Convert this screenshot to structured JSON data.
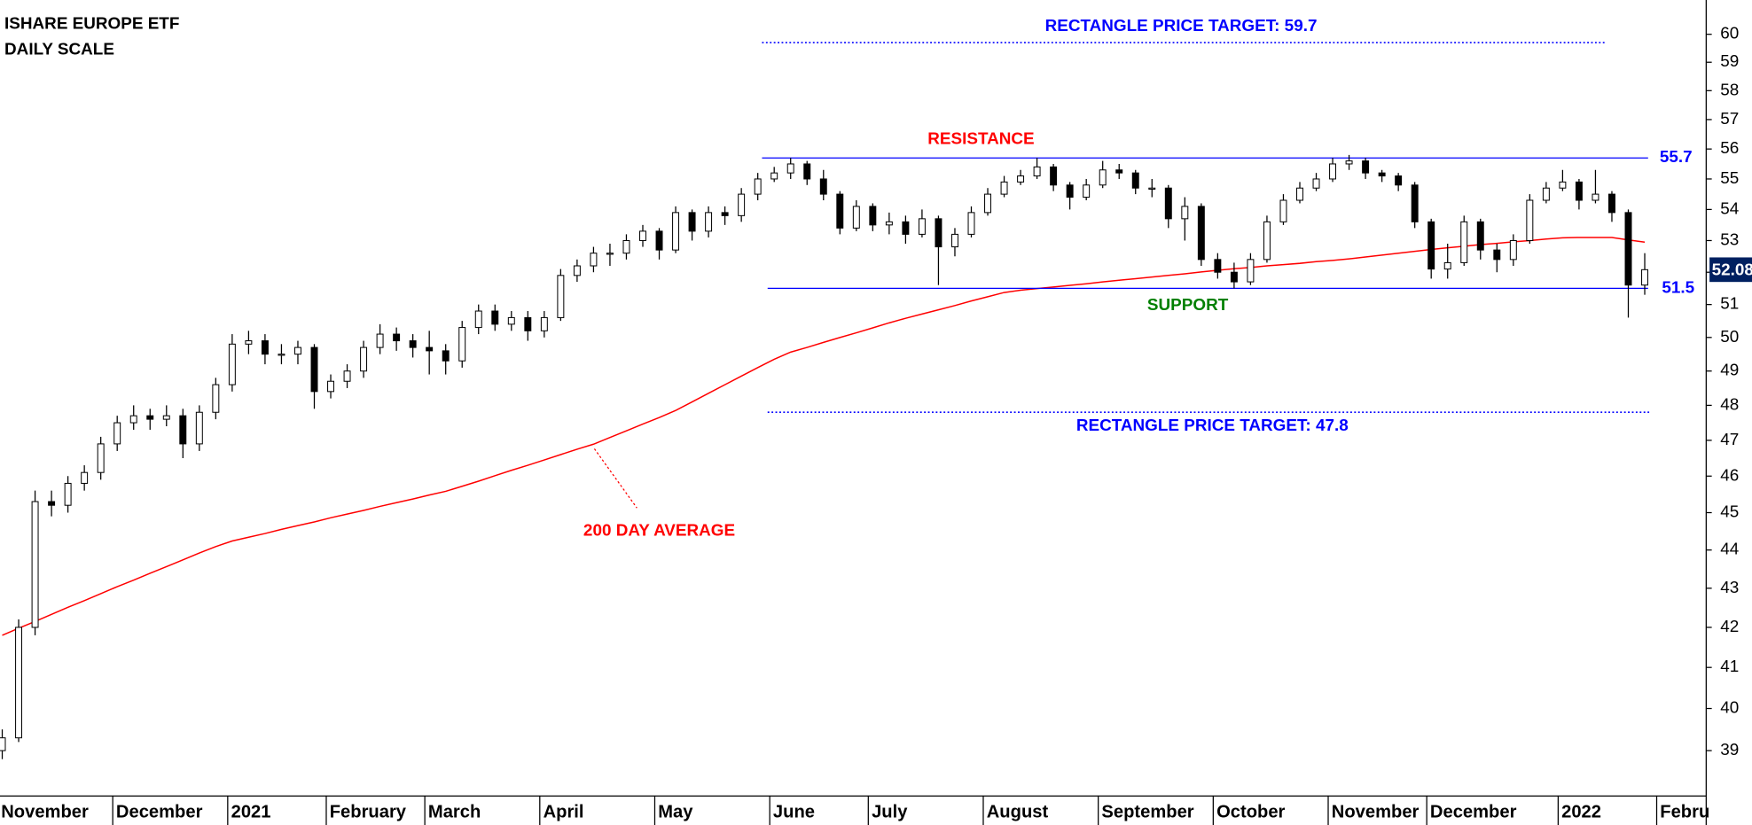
{
  "chart_data": {
    "type": "candlestick",
    "title": "ISHARE EUROPE ETF",
    "subtitle": "DAILY SCALE",
    "log_scale": true,
    "ylim": [
      37.95,
      61.25
    ],
    "yticks": [
      39,
      40,
      41,
      42,
      43,
      44,
      45,
      46,
      47,
      48,
      49,
      50,
      51,
      52,
      53,
      54,
      55,
      56,
      57,
      58,
      59,
      60
    ],
    "up_color": "#ffffff",
    "down_color": "#000000",
    "categories": [
      "November",
      null,
      null,
      null,
      null,
      null,
      null,
      "December",
      null,
      null,
      null,
      null,
      null,
      null,
      "2021",
      null,
      null,
      null,
      null,
      null,
      "February",
      null,
      null,
      null,
      null,
      null,
      "March",
      null,
      null,
      null,
      null,
      null,
      null,
      "April",
      null,
      null,
      null,
      null,
      null,
      null,
      "May",
      null,
      null,
      null,
      null,
      null,
      null,
      "June",
      null,
      null,
      null,
      null,
      null,
      "July",
      null,
      null,
      null,
      null,
      null,
      null,
      "August",
      null,
      null,
      null,
      null,
      null,
      null,
      "September",
      null,
      null,
      null,
      null,
      null,
      null,
      "October",
      null,
      null,
      null,
      null,
      null,
      null,
      "November",
      null,
      null,
      null,
      null,
      null,
      "December",
      null,
      null,
      null,
      null,
      null,
      null,
      null,
      "2022",
      null,
      null,
      null,
      null,
      null,
      "Febru"
    ],
    "open": [
      39.0,
      39.3,
      42.0,
      45.3,
      45.2,
      45.8,
      46.1,
      46.9,
      47.5,
      47.7,
      47.6,
      47.7,
      46.9,
      47.8,
      48.6,
      49.8,
      49.9,
      49.5,
      49.5,
      49.7,
      48.4,
      48.7,
      49.0,
      49.7,
      50.1,
      49.9,
      49.7,
      49.6,
      49.3,
      50.3,
      50.8,
      50.4,
      50.6,
      50.2,
      50.6,
      51.9,
      52.2,
      52.6,
      52.6,
      53.0,
      53.3,
      52.7,
      53.9,
      53.3,
      53.9,
      53.8,
      54.5,
      55.0,
      55.2,
      55.5,
      55.0,
      54.5,
      53.4,
      54.1,
      53.5,
      53.6,
      53.2,
      53.7,
      52.8,
      53.2,
      53.9,
      54.5,
      54.9,
      55.1,
      55.4,
      54.8,
      54.4,
      54.8,
      55.3,
      55.2,
      54.7,
      54.7,
      53.7,
      54.1,
      52.4,
      52.0,
      51.7,
      52.4,
      53.6,
      54.3,
      54.7,
      55.0,
      55.5,
      55.6,
      55.2,
      55.1,
      54.8,
      53.6,
      52.1,
      52.3,
      53.6,
      52.7,
      52.4,
      53.0,
      54.3,
      54.7,
      54.9,
      54.3,
      54.5,
      53.9,
      51.6,
      null
    ],
    "high": [
      39.5,
      42.2,
      45.6,
      45.6,
      46.0,
      46.3,
      47.1,
      47.7,
      48.0,
      47.9,
      48.0,
      47.9,
      48.0,
      48.8,
      50.1,
      50.2,
      50.1,
      49.8,
      49.9,
      49.8,
      48.9,
      49.2,
      49.9,
      50.4,
      50.3,
      50.1,
      50.2,
      49.8,
      50.5,
      51.0,
      51.0,
      50.8,
      50.8,
      50.8,
      52.1,
      52.4,
      52.8,
      52.9,
      53.2,
      53.5,
      53.4,
      54.1,
      54.0,
      54.1,
      54.1,
      54.7,
      55.2,
      55.4,
      55.7,
      55.6,
      55.3,
      54.6,
      54.3,
      54.2,
      53.9,
      53.8,
      54.0,
      53.8,
      53.4,
      54.1,
      54.7,
      55.1,
      55.3,
      55.7,
      55.5,
      54.9,
      55.0,
      55.6,
      55.5,
      55.3,
      55.0,
      54.8,
      54.4,
      54.2,
      52.6,
      52.3,
      52.6,
      53.8,
      54.5,
      54.9,
      55.2,
      55.7,
      55.8,
      55.7,
      55.3,
      55.2,
      54.9,
      53.7,
      52.9,
      53.8,
      53.7,
      52.9,
      53.2,
      54.5,
      54.9,
      55.3,
      55.0,
      55.3,
      54.6,
      54.0,
      52.6,
      null
    ],
    "low": [
      38.8,
      39.2,
      41.8,
      44.9,
      45.0,
      45.6,
      45.9,
      46.7,
      47.3,
      47.3,
      47.4,
      46.5,
      46.7,
      47.6,
      48.4,
      49.5,
      49.2,
      49.2,
      49.2,
      47.9,
      48.2,
      48.5,
      48.8,
      49.5,
      49.6,
      49.4,
      48.9,
      48.9,
      49.1,
      50.1,
      50.2,
      50.2,
      49.9,
      50.0,
      50.5,
      51.7,
      52.0,
      52.2,
      52.4,
      52.8,
      52.4,
      52.6,
      53.0,
      53.1,
      53.5,
      53.6,
      54.3,
      54.9,
      55.0,
      54.8,
      54.3,
      53.2,
      53.3,
      53.3,
      53.2,
      52.9,
      53.1,
      51.6,
      52.5,
      53.1,
      53.8,
      54.4,
      54.8,
      55.0,
      54.6,
      54.0,
      54.3,
      54.7,
      55.0,
      54.5,
      54.4,
      53.4,
      53.0,
      52.2,
      51.8,
      51.5,
      51.6,
      52.3,
      53.5,
      54.2,
      54.6,
      54.9,
      55.3,
      55.0,
      54.9,
      54.6,
      53.4,
      51.8,
      51.8,
      52.2,
      52.4,
      52.0,
      52.2,
      52.9,
      54.2,
      54.6,
      54.0,
      54.2,
      53.6,
      50.6,
      51.3,
      null
    ],
    "close": [
      39.3,
      42.0,
      45.3,
      45.2,
      45.8,
      46.1,
      46.9,
      47.5,
      47.7,
      47.6,
      47.7,
      46.9,
      47.8,
      48.6,
      49.8,
      49.9,
      49.5,
      49.5,
      49.7,
      48.4,
      48.7,
      49.0,
      49.7,
      50.1,
      49.9,
      49.7,
      49.6,
      49.3,
      50.3,
      50.8,
      50.4,
      50.6,
      50.2,
      50.6,
      51.9,
      52.2,
      52.6,
      52.6,
      53.0,
      53.3,
      52.7,
      53.9,
      53.3,
      53.9,
      53.8,
      54.5,
      55.0,
      55.2,
      55.5,
      55.0,
      54.5,
      53.4,
      54.1,
      53.5,
      53.6,
      53.2,
      53.7,
      52.8,
      53.2,
      53.9,
      54.5,
      54.9,
      55.1,
      55.4,
      54.8,
      54.4,
      54.8,
      55.3,
      55.2,
      54.7,
      54.7,
      53.7,
      54.1,
      52.4,
      52.0,
      51.7,
      52.4,
      53.6,
      54.3,
      54.7,
      55.0,
      55.5,
      55.6,
      55.2,
      55.1,
      54.8,
      53.6,
      52.1,
      52.3,
      53.6,
      52.7,
      52.4,
      53.0,
      54.3,
      54.7,
      54.9,
      54.3,
      54.5,
      53.9,
      51.6,
      52.08,
      null
    ],
    "last_price_color": "#002060",
    "moving_average": {
      "name": "200 DAY AVERAGE",
      "color": "#ff0000",
      "values": [
        41.8,
        41.98,
        42.15,
        42.33,
        42.51,
        42.68,
        42.86,
        43.04,
        43.21,
        43.39,
        43.56,
        43.74,
        43.92,
        44.09,
        44.24,
        44.34,
        44.44,
        44.55,
        44.65,
        44.75,
        44.86,
        44.96,
        45.06,
        45.17,
        45.27,
        45.37,
        45.48,
        45.58,
        45.72,
        45.86,
        46.01,
        46.16,
        46.3,
        46.45,
        46.6,
        46.75,
        46.89,
        47.08,
        47.27,
        47.46,
        47.65,
        47.85,
        48.1,
        48.35,
        48.6,
        48.85,
        49.1,
        49.35,
        49.56,
        49.7,
        49.85,
        50.0,
        50.14,
        50.29,
        50.44,
        50.58,
        50.71,
        50.84,
        50.97,
        51.11,
        51.24,
        51.37,
        51.44,
        51.49,
        51.54,
        51.59,
        51.64,
        51.7,
        51.75,
        51.8,
        51.85,
        51.9,
        51.95,
        52.01,
        52.06,
        52.11,
        52.15,
        52.2,
        52.24,
        52.28,
        52.33,
        52.37,
        52.42,
        52.48,
        52.54,
        52.6,
        52.66,
        52.72,
        52.77,
        52.82,
        52.87,
        52.91,
        52.96,
        53.0,
        53.05,
        53.09,
        53.1,
        53.1,
        53.1,
        53.02,
        52.95,
        null
      ]
    },
    "levels": [
      {
        "name": "RECTANGLE PRICE TARGET: 59.7",
        "value": 59.7,
        "color": "#0000ff",
        "name_color": "#0000ff",
        "dotted": true,
        "show_value": false
      },
      {
        "name": "RESISTANCE",
        "value": 55.7,
        "color": "#0000ff",
        "name_color": "#ff0000",
        "dotted": false,
        "show_value": true
      },
      {
        "name": "SUPPORT",
        "value": 51.5,
        "color": "#0000ff",
        "name_color": "#008000",
        "dotted": false,
        "show_value": true
      },
      {
        "name": "RECTANGLE PRICE TARGET: 47.8",
        "value": 47.8,
        "color": "#0000ff",
        "name_color": "#0000ff",
        "dotted": true,
        "show_value": false
      }
    ]
  }
}
